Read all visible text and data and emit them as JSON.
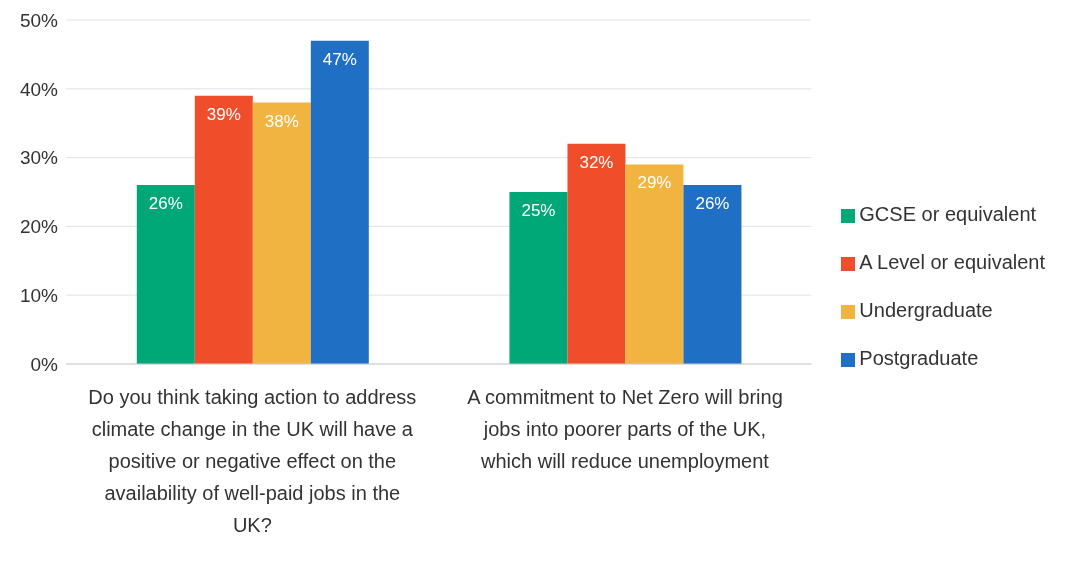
{
  "chart_data": {
    "type": "bar",
    "categories": [
      "Do you think taking action to address climate change in the UK will have a positive or negative effect on the availability of well-paid jobs in the UK?",
      "A commitment to Net Zero will bring jobs into poorer parts of the UK, which will reduce unemployment"
    ],
    "series": [
      {
        "name": "GCSE or equivalent",
        "color": "#00a878",
        "values": [
          26,
          25
        ],
        "value_labels": [
          "26%",
          "25%"
        ]
      },
      {
        "name": "A Level or equivalent",
        "color": "#f04e2a",
        "values": [
          39,
          32
        ],
        "value_labels": [
          "39%",
          "32%"
        ]
      },
      {
        "name": "Undergraduate",
        "color": "#f2b441",
        "values": [
          38,
          29
        ],
        "value_labels": [
          "38%",
          "29%"
        ]
      },
      {
        "name": "Postgraduate",
        "color": "#1f6fc5",
        "values": [
          47,
          26
        ],
        "value_labels": [
          "47%",
          "26%"
        ]
      }
    ],
    "ylim": [
      0,
      50
    ],
    "yticks": [
      {
        "value": 0,
        "label": "0%"
      },
      {
        "value": 10,
        "label": "10%"
      },
      {
        "value": 20,
        "label": "20%"
      },
      {
        "value": 30,
        "label": "30%"
      },
      {
        "value": 40,
        "label": "40%"
      },
      {
        "value": 50,
        "label": "50%"
      }
    ],
    "grid": "y",
    "legend": "right"
  }
}
